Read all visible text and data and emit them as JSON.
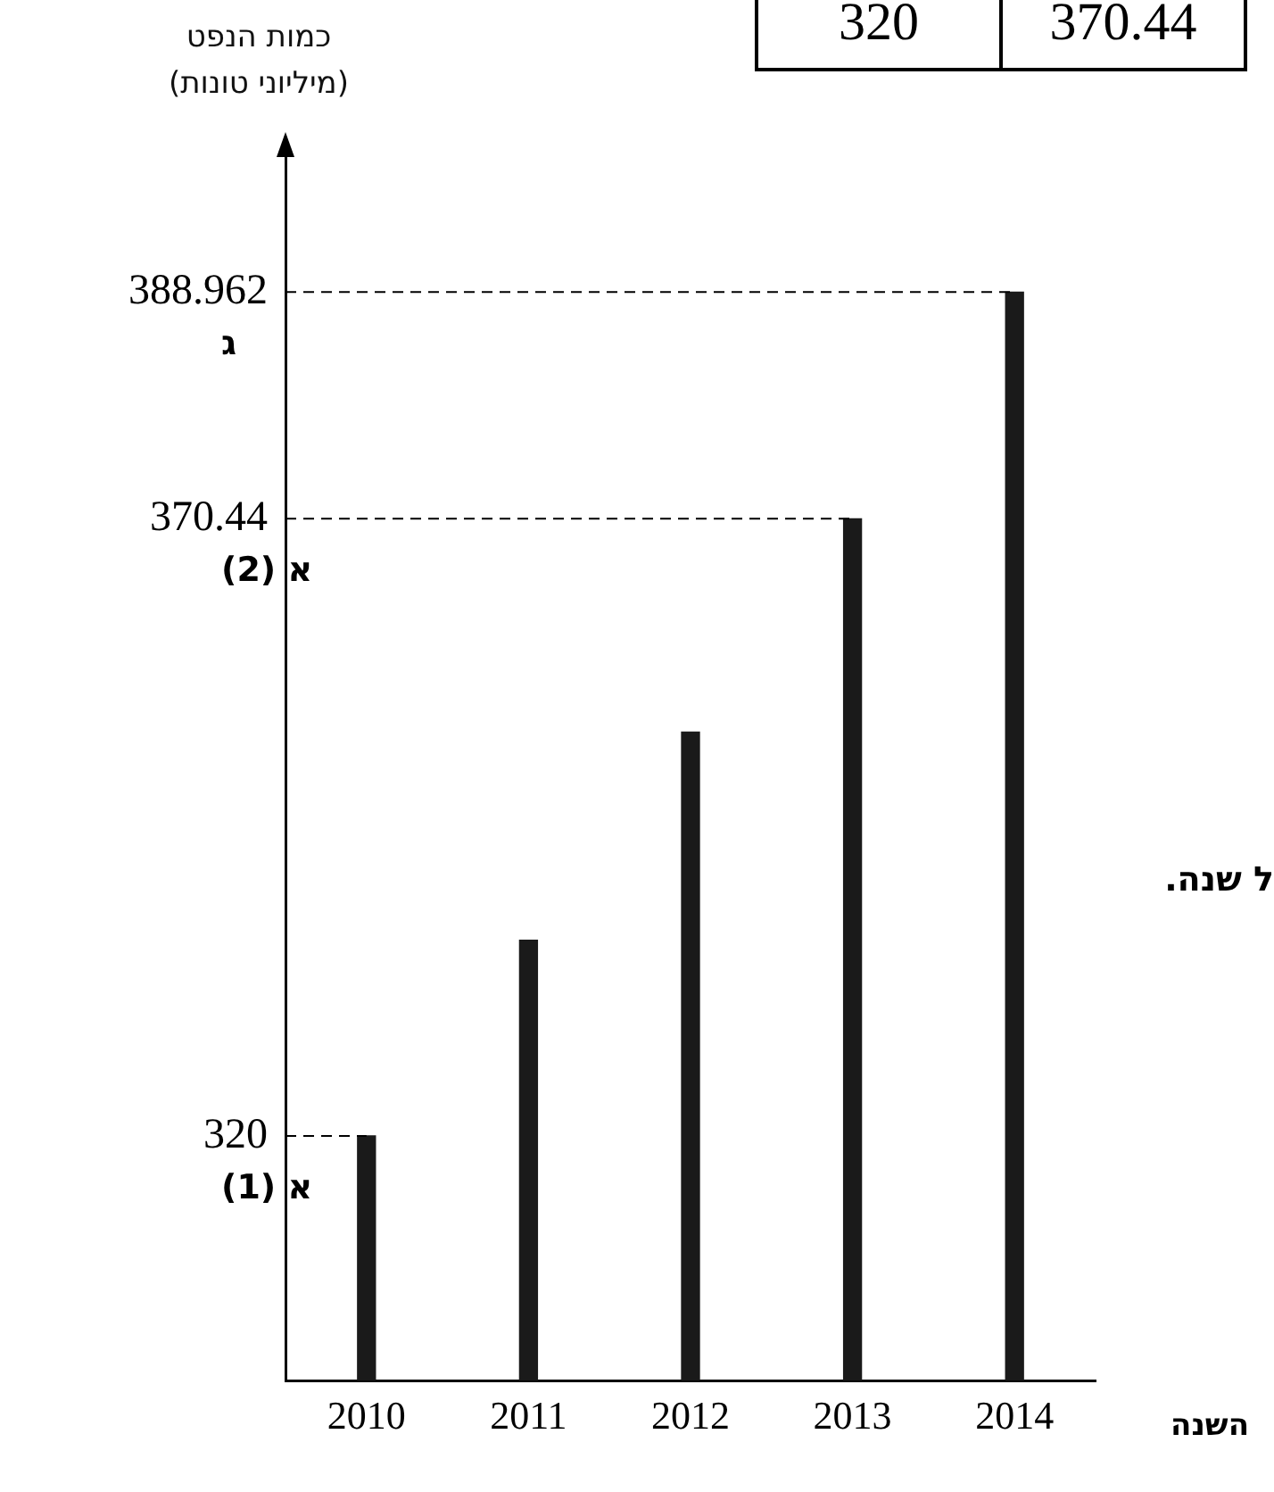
{
  "chart_data": {
    "type": "bar",
    "xlabel": "השנה",
    "ylabel": "כמות הנפט\n(מיליוני טונות)",
    "categories": [
      "2010",
      "2011",
      "2012",
      "2013",
      "2014"
    ],
    "values": [
      320,
      336,
      353,
      370.44,
      388.962
    ],
    "color": "#1a1a1a",
    "ylim": [
      300,
      400
    ],
    "yticks": [
      320,
      370.44,
      388.962
    ],
    "grid": false,
    "legend": false,
    "ref_lines": [
      {
        "axis": "y",
        "value": 388.962,
        "label": "ג",
        "line_style": "dashed"
      },
      {
        "axis": "y",
        "value": 370.44,
        "label": "א (2)",
        "line_style": "dashed"
      },
      {
        "axis": "y",
        "value": 320,
        "label": "א (1)",
        "line_style": "dashed"
      }
    ],
    "annotations": [
      "320",
      "370.44",
      "ל שנה."
    ]
  }
}
